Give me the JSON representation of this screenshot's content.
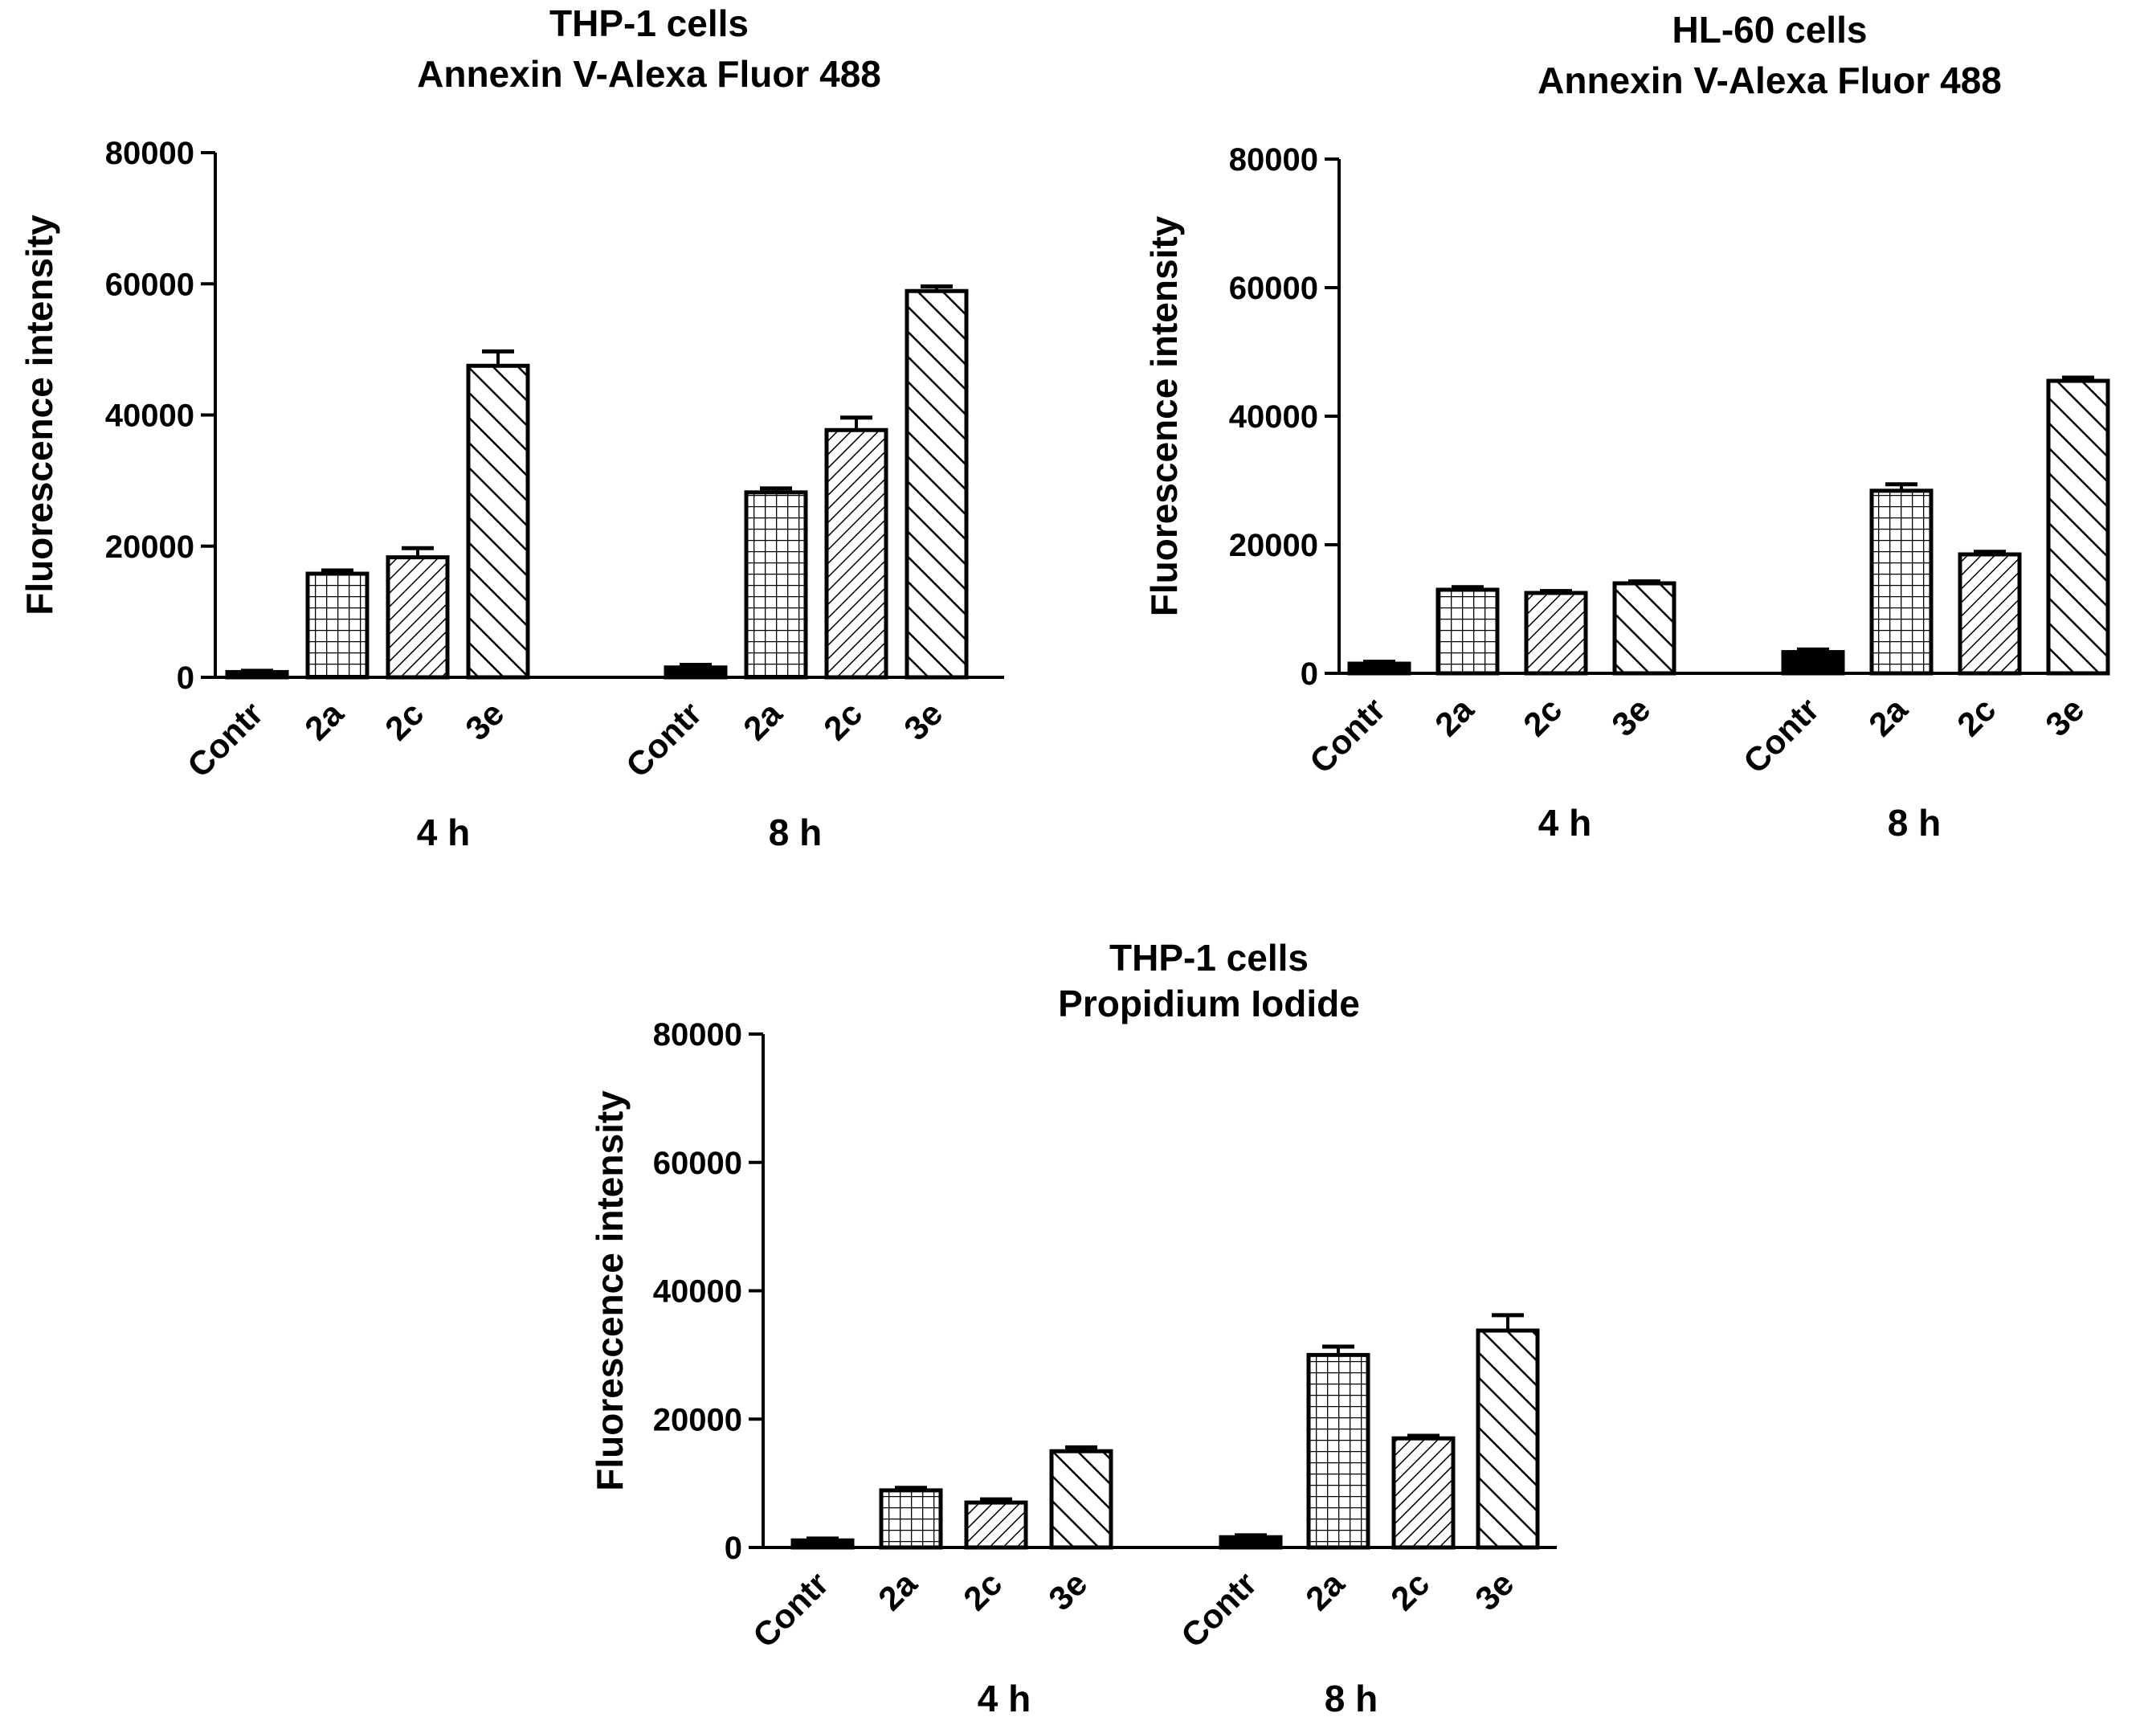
{
  "chart_data": [
    {
      "type": "bar",
      "title": [
        "THP-1 cells",
        "Annexin V-Alexa Fluor 488"
      ],
      "ylabel": "Fluorescence intensity",
      "xlabel": "",
      "ylim": [
        0,
        80000
      ],
      "yticks": [
        0,
        20000,
        40000,
        60000,
        80000
      ],
      "groups": [
        {
          "label": "4 h",
          "categories": [
            "Contr",
            "2a",
            "2c",
            "3e"
          ],
          "values": [
            800,
            15800,
            18300,
            47500
          ],
          "errors": [
            200,
            500,
            1400,
            2200
          ]
        },
        {
          "label": "8 h",
          "categories": [
            "Contr",
            "2a",
            "2c",
            "3e"
          ],
          "values": [
            1500,
            28200,
            37700,
            58900
          ],
          "errors": [
            400,
            600,
            1900,
            700
          ]
        }
      ],
      "patterns": [
        "solid",
        "grid",
        "fine-diagonal",
        "wide-diagonal"
      ]
    },
    {
      "type": "bar",
      "title": [
        "HL-60 cells",
        "Annexin V-Alexa Fluor 488"
      ],
      "ylabel": "Fluorescence intensity",
      "xlabel": "",
      "ylim": [
        0,
        80000
      ],
      "yticks": [
        0,
        20000,
        40000,
        60000,
        80000
      ],
      "groups": [
        {
          "label": "4 h",
          "categories": [
            "Contr",
            "2a",
            "2c",
            "3e"
          ],
          "values": [
            1500,
            13000,
            12500,
            14000
          ],
          "errors": [
            300,
            400,
            300,
            300
          ]
        },
        {
          "label": "8 h",
          "categories": [
            "Contr",
            "2a",
            "2c",
            "3e"
          ],
          "values": [
            3300,
            28400,
            18500,
            45500
          ],
          "errors": [
            400,
            1000,
            400,
            500
          ]
        }
      ],
      "patterns": [
        "solid",
        "grid",
        "fine-diagonal",
        "wide-diagonal"
      ]
    },
    {
      "type": "bar",
      "title": [
        "THP-1 cells",
        "Propidium Iodide"
      ],
      "ylabel": "Fluorescence intensity",
      "xlabel": "",
      "ylim": [
        0,
        80000
      ],
      "yticks": [
        0,
        20000,
        40000,
        60000,
        80000
      ],
      "groups": [
        {
          "label": "4 h",
          "categories": [
            "Contr",
            "2a",
            "2c",
            "3e"
          ],
          "values": [
            1100,
            8900,
            7000,
            15000
          ],
          "errors": [
            300,
            400,
            500,
            600
          ]
        },
        {
          "label": "8 h",
          "categories": [
            "Contr",
            "2a",
            "2c",
            "3e"
          ],
          "values": [
            1600,
            30000,
            17000,
            33800
          ],
          "errors": [
            300,
            1300,
            400,
            2400
          ]
        }
      ],
      "patterns": [
        "solid",
        "grid",
        "fine-diagonal",
        "wide-diagonal"
      ]
    }
  ]
}
